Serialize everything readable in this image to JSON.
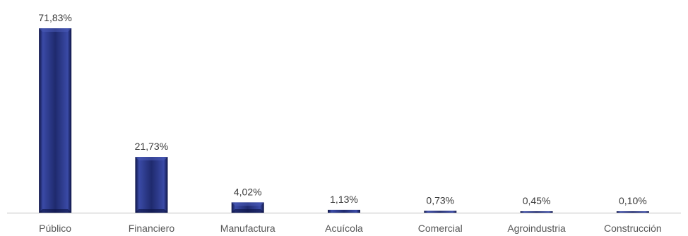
{
  "chart_data": {
    "type": "bar",
    "categories": [
      "Público",
      "Financiero",
      "Manufactura",
      "Acuícola",
      "Comercial",
      "Agroindustria",
      "Construcción"
    ],
    "values": [
      71.83,
      21.73,
      4.02,
      1.13,
      0.73,
      0.45,
      0.1
    ],
    "data_labels": [
      "71,83%",
      "21,73%",
      "4,02%",
      "1,13%",
      "0,73%",
      "0,45%",
      "0,10%"
    ],
    "ylim": [
      0,
      75
    ],
    "grid": false,
    "legend": "none",
    "colors": {
      "bar": "#1f2a6e",
      "bar_light": "#4a5bb8",
      "bar_dark": "#0e1445",
      "axis": "#bfbfbf"
    }
  }
}
